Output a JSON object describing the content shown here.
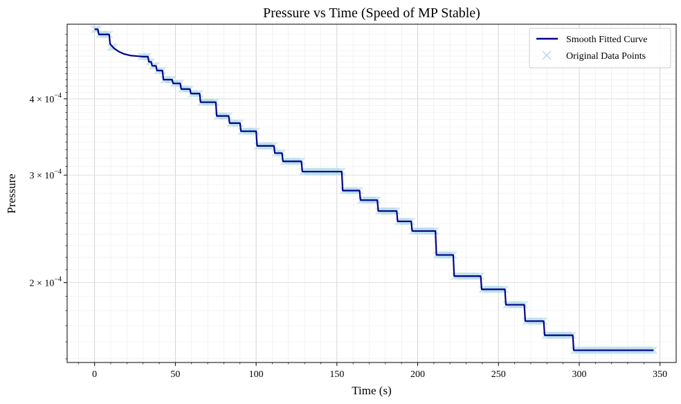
{
  "chart_data": {
    "type": "line",
    "title": "Pressure vs Time (Speed of MP Stable)",
    "xlabel": "Time (s)",
    "ylabel": "Pressure",
    "xlim": [
      -17,
      360
    ],
    "ylim": [
      0.000148,
      0.00053
    ],
    "yscale": "log",
    "grid": true,
    "legend_position": "top-right",
    "x_ticks": [
      {
        "value": 0,
        "label": "0"
      },
      {
        "value": 50,
        "label": "50"
      },
      {
        "value": 100,
        "label": "100"
      },
      {
        "value": 150,
        "label": "150"
      },
      {
        "value": 200,
        "label": "200"
      },
      {
        "value": 250,
        "label": "250"
      },
      {
        "value": 300,
        "label": "300"
      },
      {
        "value": 350,
        "label": "350"
      }
    ],
    "y_ticks": [
      {
        "value": 0.0002,
        "label": "2 × 10",
        "exp": "−4"
      },
      {
        "value": 0.0003,
        "label": "3 × 10",
        "exp": "−4"
      },
      {
        "value": 0.0004,
        "label": "4 × 10",
        "exp": "−4"
      }
    ],
    "series": [
      {
        "name": "Smooth Fitted Curve",
        "kind": "line",
        "color": "#00008b",
        "x": [
          0,
          2,
          2.6,
          9,
          9.6,
          12,
          15,
          18,
          22,
          26,
          30,
          33,
          33.6,
          35,
          35.6,
          38,
          38.6,
          42,
          42.6,
          48,
          48.6,
          53,
          53.6,
          59,
          59.6,
          65,
          65.6,
          75,
          75.6,
          83,
          83.6,
          90,
          90.6,
          100,
          100.6,
          111,
          111.6,
          116,
          116.6,
          128,
          128.6,
          153,
          153.6,
          164,
          164.6,
          175,
          175.6,
          187,
          187.6,
          196,
          196.6,
          211,
          211.6,
          222,
          222.6,
          239,
          239.6,
          254,
          254.6,
          266,
          266.6,
          278,
          278.6,
          296,
          296.6,
          346
        ],
        "y": [
          0.00052,
          0.00052,
          0.00051,
          0.00051,
          0.000492,
          0.000484,
          0.000478,
          0.000474,
          0.000471,
          0.00047,
          0.000469,
          0.000469,
          0.00046,
          0.00046,
          0.000453,
          0.000453,
          0.000445,
          0.000445,
          0.00043,
          0.00043,
          0.000424,
          0.000424,
          0.000415,
          0.000415,
          0.000408,
          0.000408,
          0.000395,
          0.000395,
          0.000375,
          0.000375,
          0.000365,
          0.000365,
          0.000354,
          0.000354,
          0.000335,
          0.000335,
          0.000326,
          0.000326,
          0.000316,
          0.000316,
          0.000304,
          0.000304,
          0.000283,
          0.000283,
          0.000273,
          0.000273,
          0.000262,
          0.000262,
          0.000252,
          0.000252,
          0.000243,
          0.000243,
          0.000222,
          0.000222,
          0.000205,
          0.000205,
          0.000195,
          0.000195,
          0.000184,
          0.000184,
          0.000173,
          0.000173,
          0.000164,
          0.000164,
          0.000155,
          0.000155
        ]
      },
      {
        "name": "Original Data Points",
        "kind": "scatter",
        "marker": "x",
        "color": "#add8e6",
        "segments": [
          {
            "x0": 0,
            "x1": 2,
            "y": 0.00052
          },
          {
            "x0": 3,
            "x1": 9,
            "y": 0.00051
          },
          {
            "x0": 10,
            "x1": 12,
            "y": 0.000486
          },
          {
            "x0": 29,
            "x1": 33,
            "y": 0.000469
          },
          {
            "x0": 34,
            "x1": 35,
            "y": 0.00046
          },
          {
            "x0": 36,
            "x1": 38,
            "y": 0.000453
          },
          {
            "x0": 39,
            "x1": 42,
            "y": 0.000445
          },
          {
            "x0": 43,
            "x1": 48,
            "y": 0.00043
          },
          {
            "x0": 49,
            "x1": 53,
            "y": 0.000424
          },
          {
            "x0": 54,
            "x1": 59,
            "y": 0.000415
          },
          {
            "x0": 60,
            "x1": 65,
            "y": 0.000408
          },
          {
            "x0": 66,
            "x1": 75,
            "y": 0.000395
          },
          {
            "x0": 76,
            "x1": 83,
            "y": 0.000375
          },
          {
            "x0": 84,
            "x1": 90,
            "y": 0.000365
          },
          {
            "x0": 91,
            "x1": 100,
            "y": 0.000354
          },
          {
            "x0": 101,
            "x1": 111,
            "y": 0.000335
          },
          {
            "x0": 112,
            "x1": 116,
            "y": 0.000326
          },
          {
            "x0": 117,
            "x1": 128,
            "y": 0.000316
          },
          {
            "x0": 129,
            "x1": 153,
            "y": 0.000304
          },
          {
            "x0": 154,
            "x1": 164,
            "y": 0.000283
          },
          {
            "x0": 165,
            "x1": 175,
            "y": 0.000273
          },
          {
            "x0": 176,
            "x1": 187,
            "y": 0.000262
          },
          {
            "x0": 188,
            "x1": 196,
            "y": 0.000252
          },
          {
            "x0": 197,
            "x1": 211,
            "y": 0.000243
          },
          {
            "x0": 212,
            "x1": 222,
            "y": 0.000222
          },
          {
            "x0": 223,
            "x1": 239,
            "y": 0.000205
          },
          {
            "x0": 240,
            "x1": 254,
            "y": 0.000195
          },
          {
            "x0": 255,
            "x1": 266,
            "y": 0.000184
          },
          {
            "x0": 267,
            "x1": 278,
            "y": 0.000173
          },
          {
            "x0": 279,
            "x1": 296,
            "y": 0.000164
          },
          {
            "x0": 297,
            "x1": 346,
            "y": 0.000155
          }
        ]
      }
    ]
  }
}
